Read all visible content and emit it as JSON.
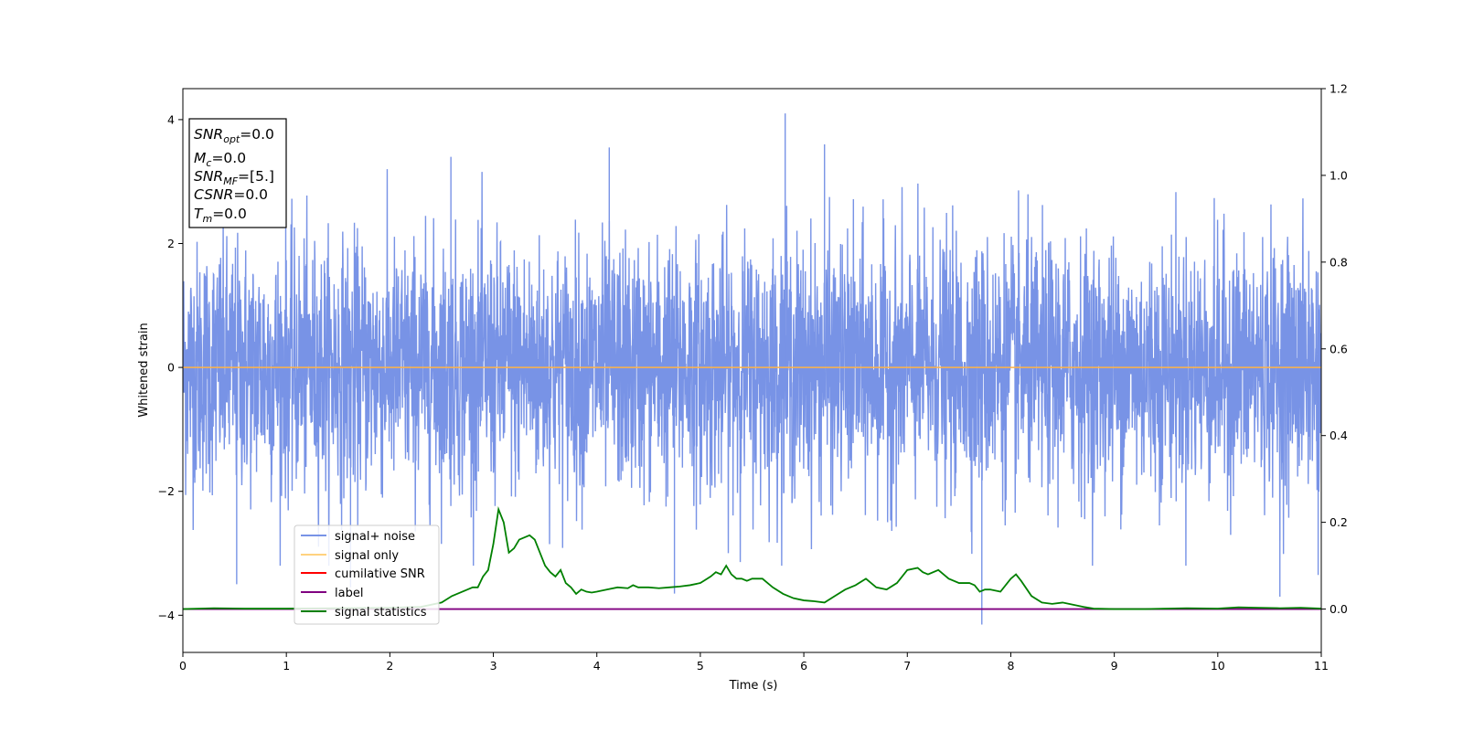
{
  "chart_data": {
    "type": "line",
    "xlabel": "Time (s)",
    "ylabel": "Whitened strain",
    "xlim": [
      0,
      11
    ],
    "ylim": [
      -4.6,
      4.5
    ],
    "y2lim": [
      -0.1,
      1.2
    ],
    "x_ticks": [
      "0",
      "1",
      "2",
      "3",
      "4",
      "5",
      "6",
      "7",
      "8",
      "9",
      "10",
      "11"
    ],
    "y_ticks": [
      "−4",
      "−2",
      "0",
      "2",
      "4"
    ],
    "y2_ticks": [
      "0.0",
      "0.2",
      "0.4",
      "0.6",
      "0.8",
      "1.0",
      "1.2"
    ],
    "legend_position": "lower-left",
    "legend": [
      {
        "label": "signal+ noise",
        "color": "#7893e6"
      },
      {
        "label": "signal only",
        "color": "#ffd27f"
      },
      {
        "label": "cumilative SNR",
        "color": "#ff0000"
      },
      {
        "label": "label",
        "color": "#800080"
      },
      {
        "label": "signal statistics",
        "color": "#008000"
      }
    ],
    "info_box": [
      {
        "var": "SNR",
        "sub": "opt",
        "val": "=0.0"
      },
      {
        "var": "M",
        "sub": "c",
        "val": "=0.0"
      },
      {
        "var": "SNR",
        "sub": "MF",
        "val": "=[5.]"
      },
      {
        "var": "CSNR",
        "sub": "",
        "val": "=0.0"
      },
      {
        "var": "T",
        "sub": "m",
        "val": "=0.0"
      }
    ],
    "series": [
      {
        "name": "signal+ noise",
        "axis": "left",
        "color": "#7893e6",
        "description_samples": 4096,
        "amplitude_sigma": 1.0,
        "notable_peaks": [
          [
            0.52,
            -3.5
          ],
          [
            1.62,
            -3.55
          ],
          [
            4.12,
            3.55
          ],
          [
            4.75,
            -3.65
          ],
          [
            5.82,
            4.1
          ],
          [
            6.2,
            3.6
          ],
          [
            7.72,
            -4.15
          ],
          [
            10.6,
            -3.7
          ],
          [
            10.97,
            -3.35
          ],
          [
            2.59,
            3.4
          ]
        ]
      },
      {
        "name": "signal only",
        "axis": "left",
        "color": "#ffb347",
        "x": [
          0,
          11
        ],
        "y": [
          0,
          0
        ]
      },
      {
        "name": "label",
        "axis": "right",
        "color": "#800080",
        "x": [
          0,
          11
        ],
        "y": [
          0,
          0
        ]
      },
      {
        "name": "signal statistics",
        "axis": "right",
        "color": "#008000",
        "x": [
          0,
          0.3,
          0.6,
          1.0,
          1.5,
          2.0,
          2.3,
          2.5,
          2.6,
          2.7,
          2.8,
          2.85,
          2.9,
          2.95,
          3.0,
          3.05,
          3.1,
          3.15,
          3.2,
          3.25,
          3.3,
          3.35,
          3.4,
          3.45,
          3.5,
          3.55,
          3.6,
          3.65,
          3.7,
          3.75,
          3.8,
          3.85,
          3.9,
          3.95,
          4.0,
          4.1,
          4.2,
          4.3,
          4.35,
          4.4,
          4.5,
          4.6,
          4.7,
          4.8,
          4.9,
          5.0,
          5.1,
          5.15,
          5.2,
          5.25,
          5.3,
          5.35,
          5.4,
          5.45,
          5.5,
          5.6,
          5.7,
          5.8,
          5.9,
          6.0,
          6.1,
          6.2,
          6.3,
          6.4,
          6.5,
          6.6,
          6.7,
          6.8,
          6.9,
          7.0,
          7.1,
          7.15,
          7.2,
          7.3,
          7.35,
          7.4,
          7.5,
          7.6,
          7.65,
          7.7,
          7.75,
          7.8,
          7.9,
          8.0,
          8.05,
          8.1,
          8.2,
          8.3,
          8.4,
          8.5,
          8.6,
          8.7,
          8.8,
          9.0,
          9.3,
          9.7,
          10.0,
          10.2,
          10.4,
          10.6,
          10.8,
          11.0
        ],
        "y": [
          0.0,
          0.002,
          0.001,
          0.001,
          0.002,
          0.003,
          0.005,
          0.015,
          0.03,
          0.04,
          0.05,
          0.05,
          0.075,
          0.09,
          0.15,
          0.23,
          0.2,
          0.13,
          0.14,
          0.16,
          0.165,
          0.17,
          0.16,
          0.13,
          0.1,
          0.085,
          0.075,
          0.09,
          0.06,
          0.05,
          0.035,
          0.045,
          0.04,
          0.038,
          0.04,
          0.045,
          0.05,
          0.048,
          0.055,
          0.05,
          0.05,
          0.048,
          0.05,
          0.052,
          0.055,
          0.06,
          0.075,
          0.085,
          0.08,
          0.1,
          0.08,
          0.07,
          0.07,
          0.065,
          0.07,
          0.07,
          0.05,
          0.035,
          0.025,
          0.02,
          0.018,
          0.015,
          0.03,
          0.045,
          0.055,
          0.07,
          0.05,
          0.045,
          0.06,
          0.09,
          0.095,
          0.085,
          0.08,
          0.09,
          0.08,
          0.07,
          0.06,
          0.06,
          0.055,
          0.04,
          0.045,
          0.045,
          0.04,
          0.07,
          0.08,
          0.065,
          0.03,
          0.015,
          0.012,
          0.015,
          0.01,
          0.005,
          0.001,
          0.0,
          0.0,
          0.002,
          0.001,
          0.004,
          0.003,
          0.002,
          0.003,
          0.001
        ]
      }
    ]
  }
}
